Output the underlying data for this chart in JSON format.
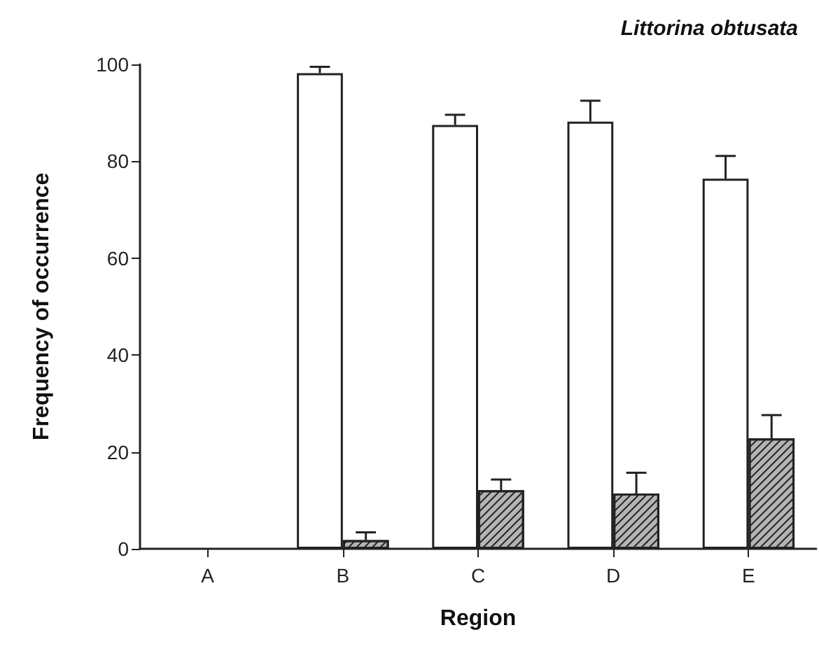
{
  "chart_data": {
    "type": "bar",
    "title": "Littorina obtusata",
    "xlabel": "Region",
    "ylabel": "Frequency of occurrence",
    "categories": [
      "A",
      "B",
      "C",
      "D",
      "E"
    ],
    "series": [
      {
        "color": "#ffffff",
        "values": [
          null,
          98.2,
          87.5,
          88.2,
          76.4
        ],
        "errors": [
          null,
          [
            98.2,
            99.5
          ],
          [
            87.5,
            89.6
          ],
          [
            88.2,
            92.5
          ],
          [
            76.4,
            81.1
          ]
        ]
      },
      {
        "color": "#b4b4b4",
        "values": [
          null,
          1.8,
          12.1,
          11.4,
          22.8
        ],
        "errors": [
          null,
          [
            1.8,
            3.4
          ],
          [
            12.1,
            14.3
          ],
          [
            11.4,
            15.7
          ],
          [
            22.8,
            27.6
          ]
        ]
      }
    ],
    "ylim": [
      0,
      100
    ],
    "yticks": [
      0,
      20,
      40,
      60,
      80,
      100
    ]
  }
}
